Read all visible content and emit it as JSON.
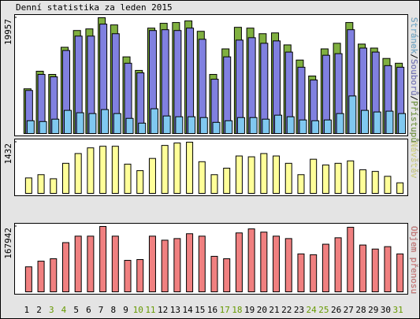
{
  "title": "Denní statistika za leden 2015",
  "chart_data": [
    {
      "type": "bar",
      "ylim": [
        0,
        19957
      ],
      "yticks": [
        19957
      ],
      "legend_separator": "/",
      "series": [
        {
          "name": "Přístupů",
          "color": "#80b040",
          "values": [
            7707,
            10735,
            10186,
            14866,
            17755,
            18031,
            19957,
            18719,
            13214,
            10874,
            18169,
            18995,
            19132,
            19407,
            17618,
            10186,
            14590,
            18306,
            18169,
            17205,
            17343,
            15278,
            12663,
            9910,
            14590,
            15554,
            19132,
            15416,
            14728,
            12938,
            12112
          ]
        },
        {
          "name": "Souborů",
          "color": "#8080e0",
          "values": [
            7432,
            10186,
            9773,
            14315,
            16792,
            16792,
            18857,
            17205,
            12112,
            10461,
            17755,
            17893,
            17755,
            18169,
            16242,
            9360,
            13214,
            16104,
            16517,
            15554,
            15966,
            14039,
            11424,
            9222,
            13489,
            13764,
            17893,
            14728,
            14039,
            11700,
            11424
          ]
        },
        {
          "name": "Stránek",
          "color": "#80c8f0",
          "values": [
            2202,
            2065,
            2477,
            3991,
            3579,
            3441,
            4129,
            3441,
            2615,
            1789,
            4267,
            3028,
            2890,
            2890,
            2753,
            1927,
            2202,
            2753,
            2753,
            2477,
            3166,
            2890,
            2340,
            2202,
            2340,
            3441,
            6469,
            3991,
            3716,
            3854,
            3441
          ]
        }
      ]
    },
    {
      "type": "bar",
      "ylim": [
        0,
        1432
      ],
      "yticks": [
        1432
      ],
      "series": [
        {
          "name": "Návštěv",
          "color": "#ffff99",
          "values": [
            432,
            523,
            409,
            841,
            1114,
            1273,
            1318,
            1318,
            818,
            636,
            977,
            1341,
            1409,
            1432,
            886,
            523,
            705,
            1046,
            1023,
            1114,
            1046,
            841,
            523,
            955,
            795,
            841,
            909,
            659,
            614,
            477,
            295
          ]
        }
      ]
    },
    {
      "type": "bar",
      "ylim": [
        0,
        167942
      ],
      "yticks": [
        167942
      ],
      "categories": [
        "1",
        "2",
        "3",
        "4",
        "5",
        "6",
        "7",
        "8",
        "9",
        "10",
        "11",
        "12",
        "13",
        "14",
        "15",
        "16",
        "17",
        "18",
        "19",
        "20",
        "21",
        "22",
        "23",
        "24",
        "25",
        "26",
        "27",
        "28",
        "29",
        "30",
        "31"
      ],
      "label_colors": [
        "#000",
        "#000",
        "#669900",
        "#669900",
        "#000",
        "#000",
        "#000",
        "#000",
        "#000",
        "#669900",
        "#669900",
        "#000",
        "#000",
        "#000",
        "#000",
        "#000",
        "#669900",
        "#669900",
        "#000",
        "#000",
        "#000",
        "#000",
        "#000",
        "#669900",
        "#669900",
        "#000",
        "#000",
        "#000",
        "#000",
        "#000",
        "#669900"
      ],
      "series": [
        {
          "name": "Objem přenosu",
          "color": "#f08080",
          "values": [
            64265,
            78774,
            84993,
            126453,
            143037,
            143037,
            167942,
            143037,
            80847,
            82920,
            143037,
            132672,
            136818,
            149256,
            143037,
            91212,
            84993,
            151329,
            161694,
            153402,
            143037,
            136818,
            97431,
            95358,
            122307,
            138891,
            165840,
            120234,
            109869,
            116088,
            97431
          ]
        }
      ]
    }
  ]
}
